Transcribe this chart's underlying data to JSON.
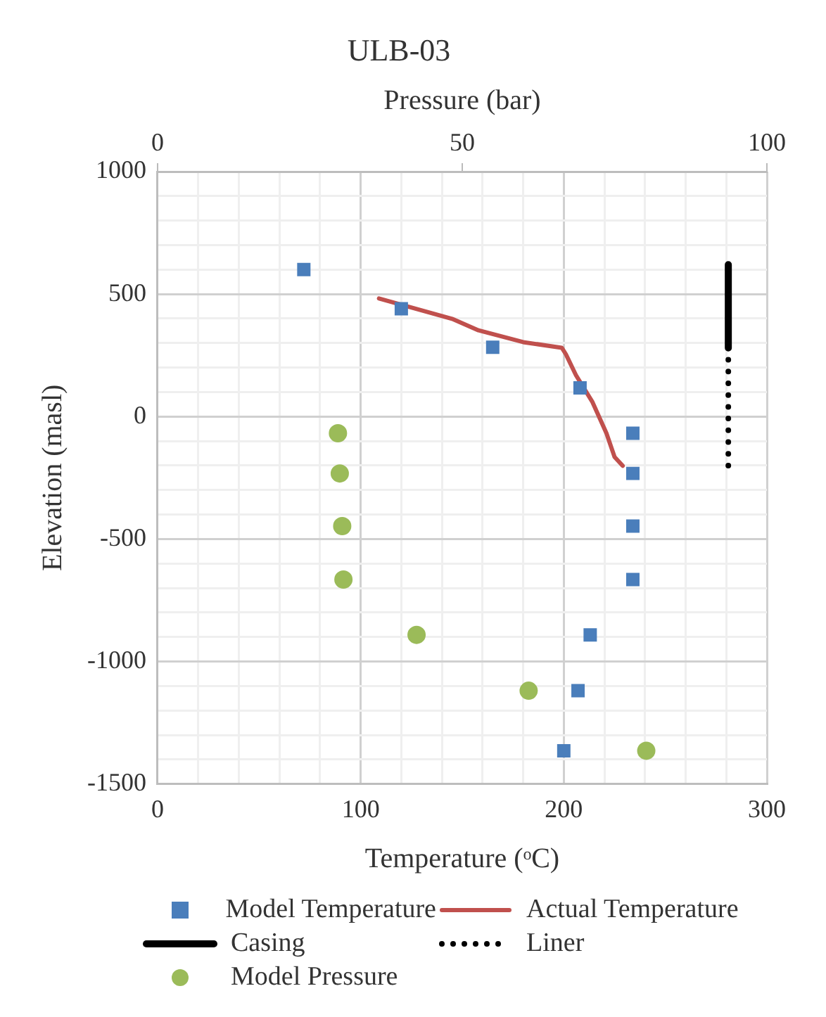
{
  "chart_data": {
    "type": "scatter",
    "title": "ULB-03",
    "xlabel": "Temperature (ᵒC)",
    "ylabel": "Elevation (masl)",
    "x2label": "Pressure (bar)",
    "xlim": [
      0,
      300
    ],
    "xticks": [
      0,
      {
        "value": 20,
        "label": null
      },
      {
        "value": 40,
        "label": null
      },
      {
        "value": 60,
        "label": null
      },
      {
        "value": 80,
        "label": null
      },
      100,
      {
        "value": 120,
        "label": null
      },
      {
        "value": 140,
        "label": null
      },
      {
        "value": 160,
        "label": null
      },
      {
        "value": 180,
        "label": null
      },
      200,
      {
        "value": 220,
        "label": null
      },
      {
        "value": 240,
        "label": null
      },
      {
        "value": 260,
        "label": null
      },
      {
        "value": 280,
        "label": null
      },
      300
    ],
    "ylim": [
      -1500,
      1000
    ],
    "yticks": [
      -1500,
      {
        "value": -1400,
        "label": null
      },
      {
        "value": -1300,
        "label": null
      },
      {
        "value": -1200,
        "label": null
      },
      {
        "value": -1100,
        "label": null
      },
      -1000,
      {
        "value": -900,
        "label": null
      },
      {
        "value": -800,
        "label": null
      },
      {
        "value": -700,
        "label": null
      },
      {
        "value": -600,
        "label": null
      },
      -500,
      {
        "value": -400,
        "label": null
      },
      {
        "value": -300,
        "label": null
      },
      {
        "value": -200,
        "label": null
      },
      {
        "value": -100,
        "label": null
      },
      0,
      {
        "value": 100,
        "label": null
      },
      {
        "value": 200,
        "label": null
      },
      {
        "value": 300,
        "label": null
      },
      {
        "value": 400,
        "label": null
      },
      500,
      {
        "value": 600,
        "label": null
      },
      {
        "value": 700,
        "label": null
      },
      {
        "value": 800,
        "label": null
      },
      {
        "value": 900,
        "label": null
      },
      1000
    ],
    "x2lim": [
      0,
      100
    ],
    "x2ticks": [
      0,
      50,
      100
    ],
    "grid": true,
    "legend": "bottom",
    "series": [
      {
        "name": "Model Temperature",
        "type": "scatter",
        "marker": "square",
        "color": "#4a7ebb",
        "x": [
          72,
          120,
          165,
          208,
          234,
          234,
          234,
          234,
          213,
          207,
          200
        ],
        "values": [
          600,
          440,
          283,
          117,
          -68,
          -232,
          -447,
          -665,
          -891,
          -1119,
          -1364
        ]
      },
      {
        "name": "Actual Temperature",
        "type": "line",
        "marker": "none",
        "line_style": "solid",
        "color": "#c0504d",
        "x": [
          109,
          145,
          158,
          180,
          199,
          201,
          206,
          214,
          221,
          225,
          229
        ],
        "values": [
          482,
          399,
          352,
          304,
          281,
          255,
          169,
          61,
          -68,
          -165,
          -201
        ]
      },
      {
        "name": "Casing",
        "type": "line",
        "marker": "none",
        "line_style": "solid",
        "color": "#000000",
        "x": [
          281,
          281
        ],
        "values": [
          620,
          280
        ]
      },
      {
        "name": "Liner",
        "type": "line",
        "marker": "none",
        "line_style": "dotted",
        "color": "#000000",
        "x": [
          281,
          281
        ],
        "values": [
          280,
          -200
        ]
      },
      {
        "name": "Model Pressure",
        "type": "scatter",
        "marker": "circle",
        "axis": "x2",
        "color": "#9bbb59",
        "x": [
          29.6,
          29.9,
          30.3,
          30.5,
          42.5,
          60.9,
          80.2
        ],
        "values": [
          -68,
          -232,
          -447,
          -665,
          -891,
          -1119,
          -1364
        ]
      }
    ]
  }
}
